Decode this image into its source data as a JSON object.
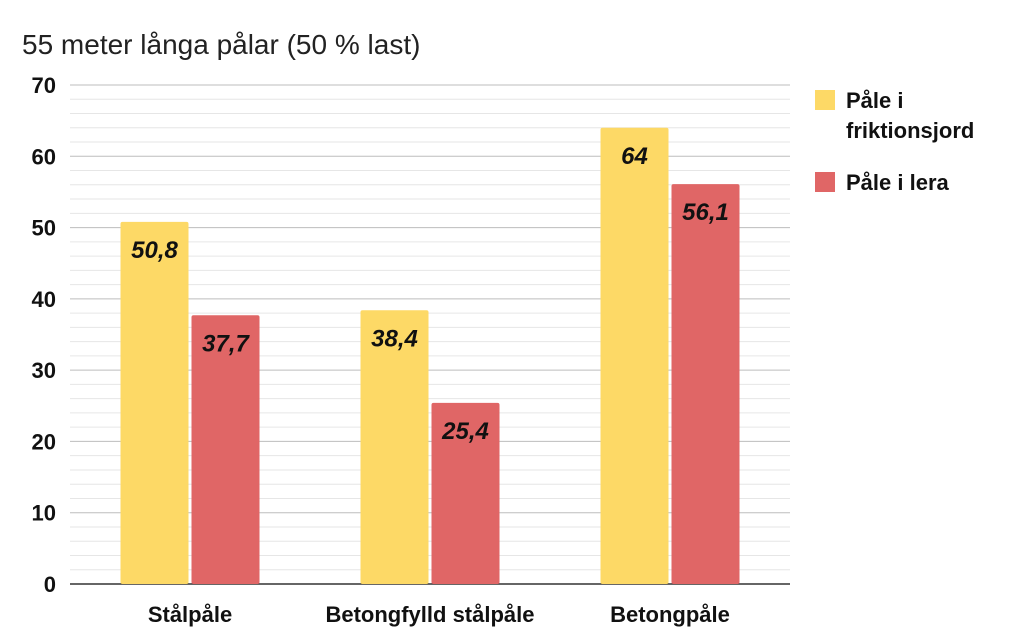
{
  "chart_data": {
    "type": "bar",
    "title": "55 meter långa pålar (50 % last)",
    "categories": [
      "Stålpåle",
      "Betongfylld stålpåle",
      "Betongpåle"
    ],
    "series": [
      {
        "name": "Påle i friktionsjord",
        "legend_lines": [
          "Påle i",
          "friktionsjord"
        ],
        "color": "#FDD966",
        "values": [
          50.8,
          38.4,
          64
        ],
        "labels": [
          "50,8",
          "38,4",
          "64"
        ]
      },
      {
        "name": "Påle i lera",
        "legend_lines": [
          "Påle i lera"
        ],
        "color": "#E06666",
        "values": [
          37.7,
          25.4,
          56.1
        ],
        "labels": [
          "37,7",
          "25,4",
          "56,1"
        ]
      }
    ],
    "ylim": [
      0,
      70
    ],
    "yticks": [
      0,
      10,
      20,
      30,
      40,
      50,
      60,
      70
    ],
    "minor_gridlines_per_major": 5,
    "grid": true,
    "legend_position": "right",
    "xlabel": "",
    "ylabel": ""
  }
}
